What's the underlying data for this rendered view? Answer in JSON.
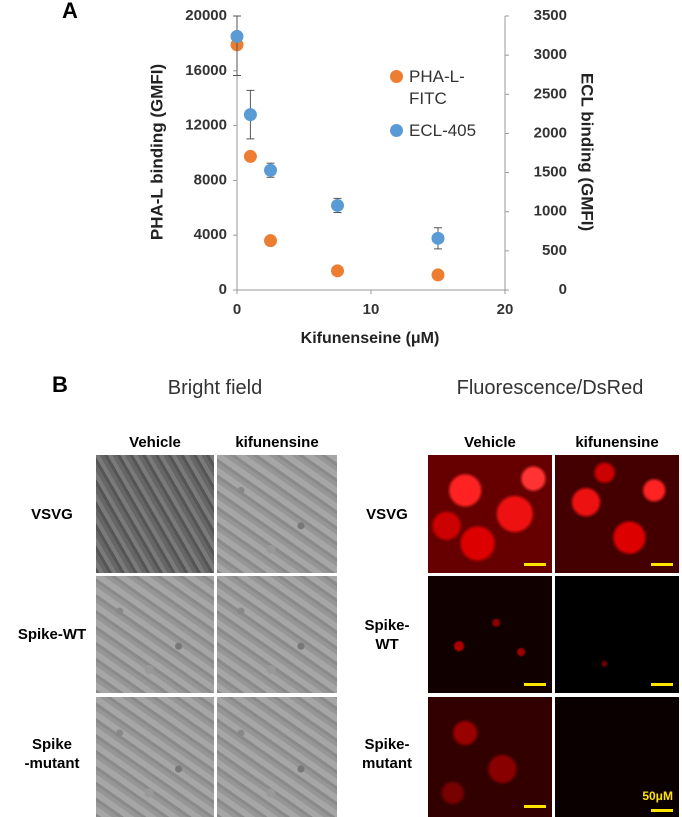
{
  "panel_labels": [
    "A",
    "B"
  ],
  "chart_data": {
    "type": "scatter",
    "x_label": "Kifunenseine (μM)",
    "y_label": "PHA-L binding (GMFI)",
    "y2_label": "ECL binding (GMFI)",
    "x": [
      0,
      1,
      2.5,
      7.5,
      15
    ],
    "series": [
      {
        "name": "PHA-L-FITC",
        "color": "#ed7d31",
        "values": [
          17900,
          9750,
          3600,
          1400,
          1100
        ]
      },
      {
        "name": "ECL-405",
        "color": "#5b9bd5",
        "axis": "y2",
        "values": [
          3240,
          2240,
          1530,
          1080,
          660
        ],
        "errors": [
          500,
          310,
          90,
          90,
          135
        ]
      }
    ],
    "xlim": [
      0,
      20
    ],
    "xticks": [
      0,
      10,
      20
    ],
    "ylim": [
      0,
      20000
    ],
    "yticks": [
      0,
      4000,
      8000,
      12000,
      16000,
      20000
    ],
    "y2lim": [
      0,
      3500
    ],
    "y2ticks": [
      0,
      500,
      1000,
      1500,
      2000,
      2500,
      3000,
      3500
    ],
    "grid": false
  },
  "panel_b": {
    "bright_field": {
      "title": "Bright field",
      "columns": [
        "Vehicle",
        "kifunensine"
      ],
      "rows": [
        "VSVG",
        "Spike-WT",
        "Spike\n-mutant"
      ]
    },
    "fluorescence": {
      "title": "Fluorescence/DsRed",
      "columns": [
        "Vehicle",
        "kifunensine"
      ],
      "rows": [
        "VSVG",
        "Spike-\nWT",
        "Spike-\nmutant"
      ],
      "scale_bar": "50μM"
    }
  }
}
